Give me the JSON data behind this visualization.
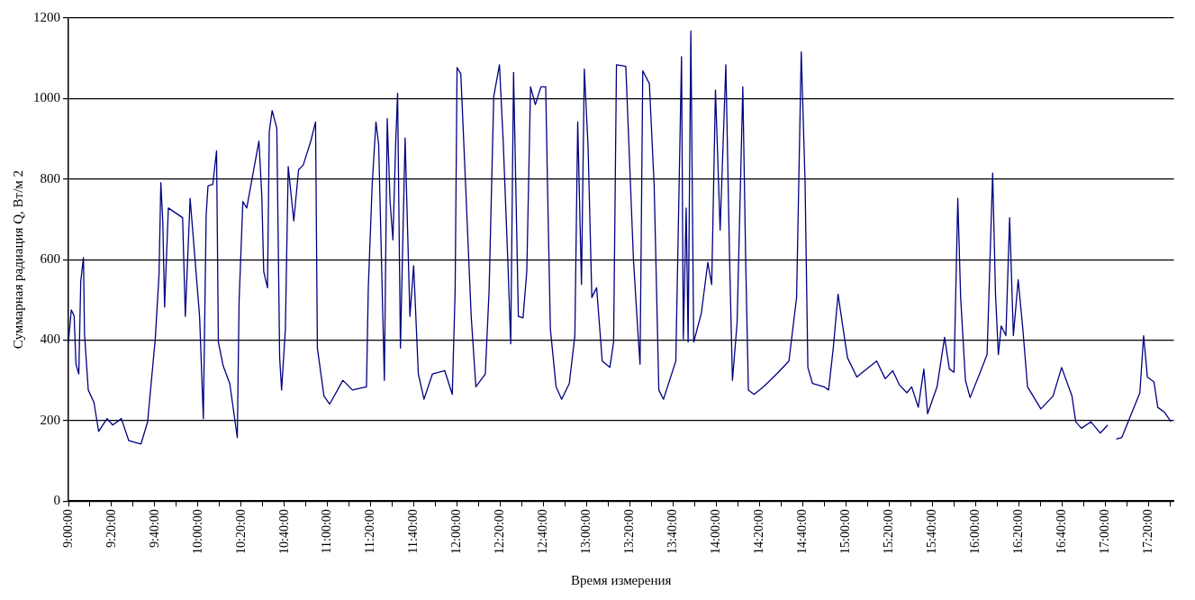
{
  "chart_data": {
    "type": "line",
    "xlabel": "Время измерения",
    "ylabel": "Суммарная радиация Q, Вт/м 2",
    "color": "#000080",
    "grid": "y",
    "xlim": [
      9,
      17.53
    ],
    "ylim": [
      0,
      1200
    ],
    "yticks": [
      0,
      200,
      400,
      600,
      800,
      1000,
      1200
    ],
    "xticks": [
      {
        "value": 9,
        "label": "9:00:00"
      },
      {
        "value": 9.1666666667,
        "label": null
      },
      {
        "value": 9.3333333333,
        "label": "9:20:00"
      },
      {
        "value": 9.5,
        "label": null
      },
      {
        "value": 9.6666666667,
        "label": "9:40:00"
      },
      {
        "value": 9.8333333333,
        "label": null
      },
      {
        "value": 10,
        "label": "10:00:00"
      },
      {
        "value": 10.1666666667,
        "label": null
      },
      {
        "value": 10.3333333333,
        "label": "10:20:00"
      },
      {
        "value": 10.5,
        "label": null
      },
      {
        "value": 10.6666666667,
        "label": "10:40:00"
      },
      {
        "value": 10.8333333333,
        "label": null
      },
      {
        "value": 11,
        "label": "11:00:00"
      },
      {
        "value": 11.1666666667,
        "label": null
      },
      {
        "value": 11.3333333333,
        "label": "11:20:00"
      },
      {
        "value": 11.5,
        "label": null
      },
      {
        "value": 11.6666666667,
        "label": "11:40:00"
      },
      {
        "value": 11.8333333333,
        "label": null
      },
      {
        "value": 12,
        "label": "12:00:00"
      },
      {
        "value": 12.1666666667,
        "label": null
      },
      {
        "value": 12.3333333333,
        "label": "12:20:00"
      },
      {
        "value": 12.5,
        "label": null
      },
      {
        "value": 12.6666666667,
        "label": "12:40:00"
      },
      {
        "value": 12.8333333333,
        "label": null
      },
      {
        "value": 13,
        "label": "13:00:00"
      },
      {
        "value": 13.1666666667,
        "label": null
      },
      {
        "value": 13.3333333333,
        "label": "13:20:00"
      },
      {
        "value": 13.5,
        "label": null
      },
      {
        "value": 13.6666666667,
        "label": "13:40:00"
      },
      {
        "value": 13.8333333333,
        "label": null
      },
      {
        "value": 14,
        "label": "14:00:00"
      },
      {
        "value": 14.1666666667,
        "label": null
      },
      {
        "value": 14.3333333333,
        "label": "14:20:00"
      },
      {
        "value": 14.5,
        "label": null
      },
      {
        "value": 14.6666666667,
        "label": "14:40:00"
      },
      {
        "value": 14.8333333333,
        "label": null
      },
      {
        "value": 15,
        "label": "15:00:00"
      },
      {
        "value": 15.1666666667,
        "label": null
      },
      {
        "value": 15.3333333333,
        "label": "15:20:00"
      },
      {
        "value": 15.5,
        "label": null
      },
      {
        "value": 15.6666666667,
        "label": "15:40:00"
      },
      {
        "value": 15.8333333333,
        "label": null
      },
      {
        "value": 16,
        "label": "16:00:00"
      },
      {
        "value": 16.1666666667,
        "label": null
      },
      {
        "value": 16.3333333333,
        "label": "16:20:00"
      },
      {
        "value": 16.5,
        "label": null
      },
      {
        "value": 16.6666666667,
        "label": "16:40:00"
      },
      {
        "value": 16.8333333333,
        "label": null
      },
      {
        "value": 17,
        "label": "17:00:00"
      },
      {
        "value": 17.1666666667,
        "label": null
      },
      {
        "value": 17.3333333333,
        "label": "17:20:00"
      },
      {
        "value": 17.5,
        "label": null
      }
    ],
    "x": [
      9,
      9.022,
      9.044,
      9.058,
      9.08,
      9.095,
      9.116,
      9.124,
      9.153,
      9.197,
      9.233,
      9.298,
      9.342,
      9.408,
      9.466,
      9.56,
      9.611,
      9.67,
      9.699,
      9.713,
      9.728,
      9.742,
      9.771,
      9.881,
      9.902,
      9.939,
      10.012,
      10.041,
      10.063,
      10.077,
      10.114,
      10.143,
      10.157,
      10.194,
      10.245,
      10.303,
      10.317,
      10.346,
      10.376,
      10.47,
      10.492,
      10.507,
      10.536,
      10.55,
      10.572,
      10.608,
      10.63,
      10.645,
      10.674,
      10.696,
      10.739,
      10.776,
      10.812,
      10.87,
      10.907,
      10.921,
      10.972,
      11.016,
      11.118,
      11.191,
      11.3,
      11.314,
      11.344,
      11.373,
      11.394,
      11.438,
      11.46,
      11.482,
      11.504,
      11.525,
      11.54,
      11.562,
      11.576,
      11.598,
      11.635,
      11.664,
      11.7,
      11.744,
      11.809,
      11.904,
      11.962,
      11.984,
      11.999,
      12.028,
      12.064,
      12.108,
      12.144,
      12.217,
      12.246,
      12.282,
      12.326,
      12.355,
      12.392,
      12.413,
      12.435,
      12.472,
      12.508,
      12.537,
      12.566,
      12.603,
      12.646,
      12.683,
      12.697,
      12.719,
      12.763,
      12.806,
      12.865,
      12.908,
      12.93,
      12.959,
      12.981,
      13.01,
      13.039,
      13.076,
      13.119,
      13.178,
      13.207,
      13.229,
      13.301,
      13.323,
      13.36,
      13.396,
      13.411,
      13.432,
      13.483,
      13.52,
      13.556,
      13.592,
      13.687,
      13.731,
      13.745,
      13.767,
      13.782,
      13.803,
      13.825,
      13.884,
      13.934,
      13.964,
      13.993,
      14.029,
      14.073,
      14.102,
      14.124,
      14.16,
      14.204,
      14.226,
      14.247,
      14.291,
      14.364,
      14.466,
      14.56,
      14.619,
      14.655,
      14.684,
      14.706,
      14.742,
      14.83,
      14.866,
      14.902,
      14.939,
      14.975,
      15.012,
      15.084,
      15.143,
      15.237,
      15.303,
      15.361,
      15.412,
      15.47,
      15.507,
      15.558,
      15.601,
      15.63,
      15.703,
      15.761,
      15.798,
      15.834,
      15.863,
      15.885,
      15.922,
      15.958,
      16.031,
      16.089,
      16.132,
      16.154,
      16.176,
      16.198,
      16.234,
      16.263,
      16.292,
      16.329,
      16.365,
      16.401,
      16.504,
      16.598,
      16.664,
      16.744,
      16.773,
      16.817,
      16.89,
      16.962,
      17.02,
      17.05,
      17.086,
      17.129,
      17.268,
      17.297,
      17.326,
      17.377,
      17.406,
      17.457,
      17.508
    ],
    "values": [
      395,
      475,
      460,
      340,
      316,
      546,
      605,
      415,
      276,
      245,
      173,
      205,
      189,
      205,
      150,
      142,
      197,
      403,
      562,
      791,
      696,
      482,
      728,
      704,
      459,
      752,
      459,
      205,
      712,
      783,
      787,
      870,
      395,
      336,
      292,
      158,
      498,
      744,
      728,
      894,
      760,
      570,
      530,
      918,
      970,
      926,
      356,
      276,
      427,
      831,
      696,
      823,
      835,
      894,
      942,
      380,
      261,
      241,
      300,
      276,
      284,
      530,
      787,
      942,
      886,
      300,
      950,
      744,
      649,
      886,
      1013,
      380,
      585,
      902,
      459,
      585,
      316,
      253,
      316,
      324,
      265,
      522,
      1077,
      1061,
      791,
      459,
      284,
      316,
      522,
      1005,
      1084,
      894,
      585,
      391,
      1065,
      459,
      455,
      570,
      1029,
      985,
      1029,
      1029,
      783,
      427,
      284,
      253,
      292,
      411,
      942,
      538,
      1073,
      879,
      506,
      530,
      348,
      332,
      395,
      1084,
      1080,
      902,
      601,
      411,
      340,
      1069,
      1037,
      783,
      276,
      253,
      348,
      1104,
      403,
      728,
      395,
      1168,
      395,
      467,
      593,
      538,
      1021,
      673,
      1084,
      601,
      300,
      443,
      1029,
      601,
      276,
      265,
      284,
      316,
      348,
      506,
      1116,
      799,
      332,
      292,
      284,
      276,
      380,
      514,
      435,
      356,
      308,
      324,
      348,
      304,
      324,
      289,
      269,
      284,
      233,
      328,
      217,
      284,
      407,
      328,
      320,
      752,
      506,
      300,
      257,
      316,
      364,
      815,
      514,
      364,
      435,
      411,
      704,
      411,
      550,
      427,
      284,
      229,
      261,
      332,
      261,
      197,
      181,
      197,
      169,
      189,
      null,
      154,
      158,
      269,
      411,
      308,
      296,
      233,
      221,
      197
    ]
  }
}
